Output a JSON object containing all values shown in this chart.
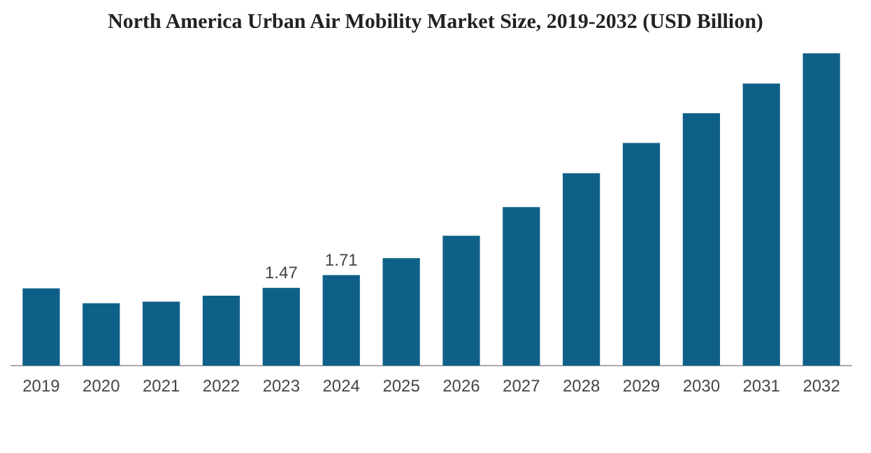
{
  "chart_data": {
    "type": "bar",
    "title": "North America Urban Air Mobility Market Size, 2019-2032 (USD Billion)",
    "categories": [
      "2019",
      "2020",
      "2021",
      "2022",
      "2023",
      "2024",
      "2025",
      "2026",
      "2027",
      "2028",
      "2029",
      "2030",
      "2031",
      "2032"
    ],
    "values": [
      1.46,
      1.18,
      1.21,
      1.32,
      1.47,
      1.71,
      2.03,
      2.45,
      2.99,
      3.63,
      4.2,
      4.76,
      5.32,
      5.89
    ],
    "value_labels": [
      null,
      null,
      null,
      null,
      "1.47",
      "1.71",
      null,
      null,
      null,
      null,
      null,
      null,
      null,
      null
    ],
    "color": "#0f6088",
    "grid": false,
    "legend": false,
    "tick_labels": "x"
  }
}
